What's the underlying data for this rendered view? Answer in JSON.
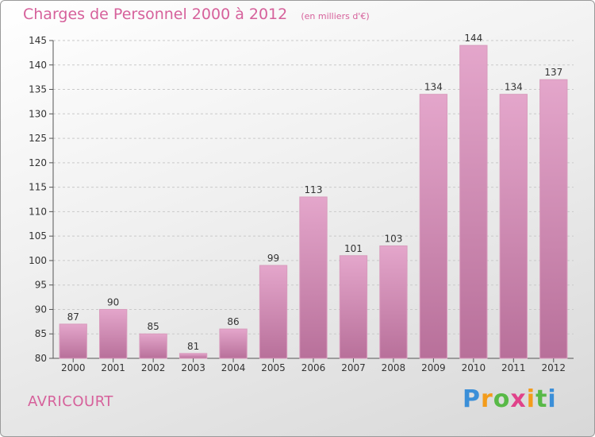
{
  "chart_data": {
    "type": "bar",
    "title": "Charges de Personnel 2000 à 2012",
    "subtitle": "(en milliers d'€)",
    "categories": [
      "2000",
      "2001",
      "2002",
      "2003",
      "2004",
      "2005",
      "2006",
      "2007",
      "2008",
      "2009",
      "2010",
      "2011",
      "2012"
    ],
    "values": [
      87,
      90,
      85,
      81,
      86,
      99,
      113,
      101,
      103,
      134,
      144,
      134,
      137
    ],
    "ylim": [
      80,
      145
    ],
    "yticks": [
      80,
      85,
      90,
      95,
      100,
      105,
      110,
      115,
      120,
      125,
      130,
      135,
      140,
      145
    ],
    "grid": true,
    "bar_color": "#cc7aa9",
    "xlabel": "",
    "ylabel": ""
  },
  "footer": {
    "commune": "AVRICOURT",
    "brand": "Proxiti"
  },
  "colors": {
    "accent": "#d6619b"
  }
}
